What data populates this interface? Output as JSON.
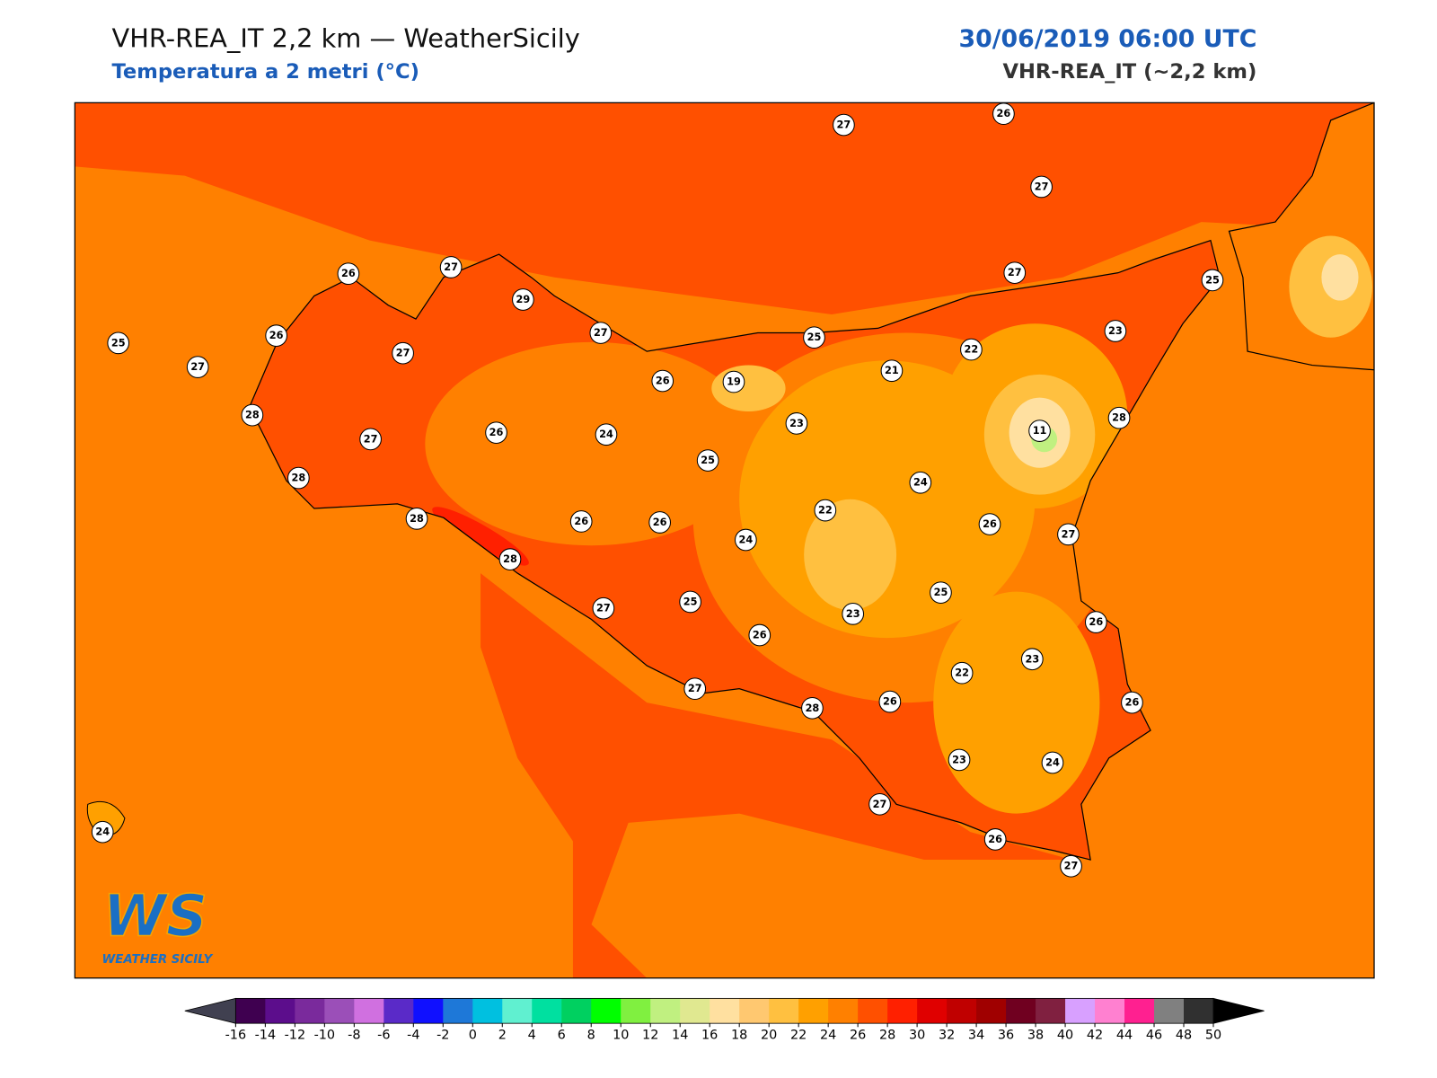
{
  "header": {
    "title": "VHR-REA_IT 2,2 km — WeatherSicily",
    "subtitle": "Temperatura a 2 metri (°C)",
    "date": "30/06/2019 06:00 UTC",
    "model": "VHR-REA_IT (~2,2 km)"
  },
  "stations": [
    27,
    26,
    27,
    26,
    27,
    29,
    27,
    26,
    25,
    27,
    27,
    25,
    27,
    25,
    23,
    22,
    21,
    19,
    26,
    28,
    27,
    26,
    24,
    23,
    11,
    28,
    25,
    24,
    28,
    28,
    26,
    26,
    24,
    22,
    26,
    27,
    28,
    25,
    25,
    27,
    23,
    26,
    26,
    23,
    22,
    27,
    28,
    26,
    26,
    23,
    24,
    27,
    26,
    27,
    24
  ],
  "colorbar": {
    "ticks": [
      -16,
      -14,
      -12,
      -10,
      -8,
      -6,
      -4,
      -2,
      0,
      2,
      4,
      6,
      8,
      10,
      12,
      14,
      16,
      18,
      20,
      22,
      24,
      26,
      28,
      30,
      32,
      34,
      36,
      38,
      40,
      42,
      44,
      46,
      48,
      50
    ],
    "colors": [
      "#3f0050",
      "#5c0d8c",
      "#7a2a9c",
      "#9b4fb8",
      "#d070e0",
      "#5a2ac8",
      "#1010ff",
      "#1e78d8",
      "#00c0e0",
      "#60f0d0",
      "#00e0a0",
      "#00d060",
      "#00ff00",
      "#80f040",
      "#c0f080",
      "#e0e890",
      "#ffe0a0",
      "#ffc870",
      "#ffc040",
      "#ffa000",
      "#ff8000",
      "#ff5000",
      "#ff2000",
      "#e00000",
      "#c00000",
      "#a00000",
      "#700020",
      "#802040",
      "#d8a0ff",
      "#ff80d0",
      "#ff2090",
      "#808080",
      "#303030"
    ],
    "under_color": "#404050",
    "over_color": "#000000"
  },
  "logo": {
    "mark": "WS",
    "name": "WEATHER SICILY"
  }
}
